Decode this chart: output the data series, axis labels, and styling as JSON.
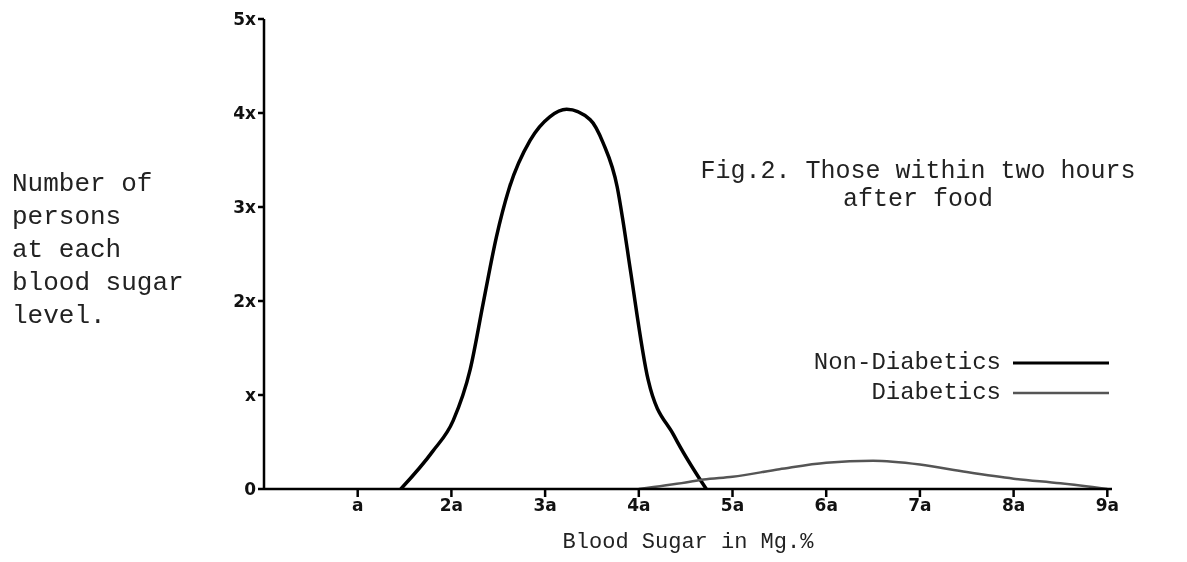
{
  "chart_data": {
    "type": "line",
    "title": "Fig.2. Those within two hours after food",
    "xlabel": "Blood Sugar in Mg.%",
    "ylabel": "Number of\npersons\nat each\nblood sugar\nlevel.",
    "xlim": [
      0,
      9.05
    ],
    "ylim": [
      0,
      5
    ],
    "xticks": [
      {
        "value": 1,
        "label": "a"
      },
      {
        "value": 2,
        "label": "2a"
      },
      {
        "value": 3,
        "label": "3a"
      },
      {
        "value": 4,
        "label": "4a"
      },
      {
        "value": 5,
        "label": "5a"
      },
      {
        "value": 6,
        "label": "6a"
      },
      {
        "value": 7,
        "label": "7a"
      },
      {
        "value": 8,
        "label": "8a"
      },
      {
        "value": 9,
        "label": "9a"
      }
    ],
    "yticks": [
      0,
      {
        "value": 1,
        "label": "x"
      },
      {
        "value": 2,
        "label": "2x"
      },
      {
        "value": 3,
        "label": "3x"
      },
      {
        "value": 4,
        "label": "4x"
      },
      {
        "value": 5,
        "label": "5x"
      }
    ],
    "grid": false,
    "legend": "right",
    "series": [
      {
        "name": "Non-Diabetics",
        "color": "#000000",
        "x": [
          1.46,
          1.8,
          2.02,
          2.2,
          2.34,
          2.48,
          2.62,
          2.84,
          3.05,
          3.23,
          3.48,
          3.62,
          3.77,
          3.83,
          3.91,
          4.1,
          4.38,
          4.72
        ],
        "values": [
          0,
          0.4,
          0.73,
          1.27,
          1.98,
          2.68,
          3.21,
          3.71,
          3.96,
          4.04,
          3.93,
          3.68,
          3.21,
          2.86,
          2.33,
          1.16,
          0.56,
          0
        ]
      },
      {
        "name": "Diabetics",
        "color": "#555555",
        "x": [
          4.0,
          4.5,
          4.69,
          5.0,
          5.5,
          6.0,
          6.5,
          7.0,
          7.5,
          8.0,
          8.5,
          9.0
        ],
        "values": [
          0,
          0.07,
          0.1,
          0.13,
          0.21,
          0.28,
          0.3,
          0.26,
          0.18,
          0.11,
          0.06,
          0
        ]
      }
    ]
  }
}
